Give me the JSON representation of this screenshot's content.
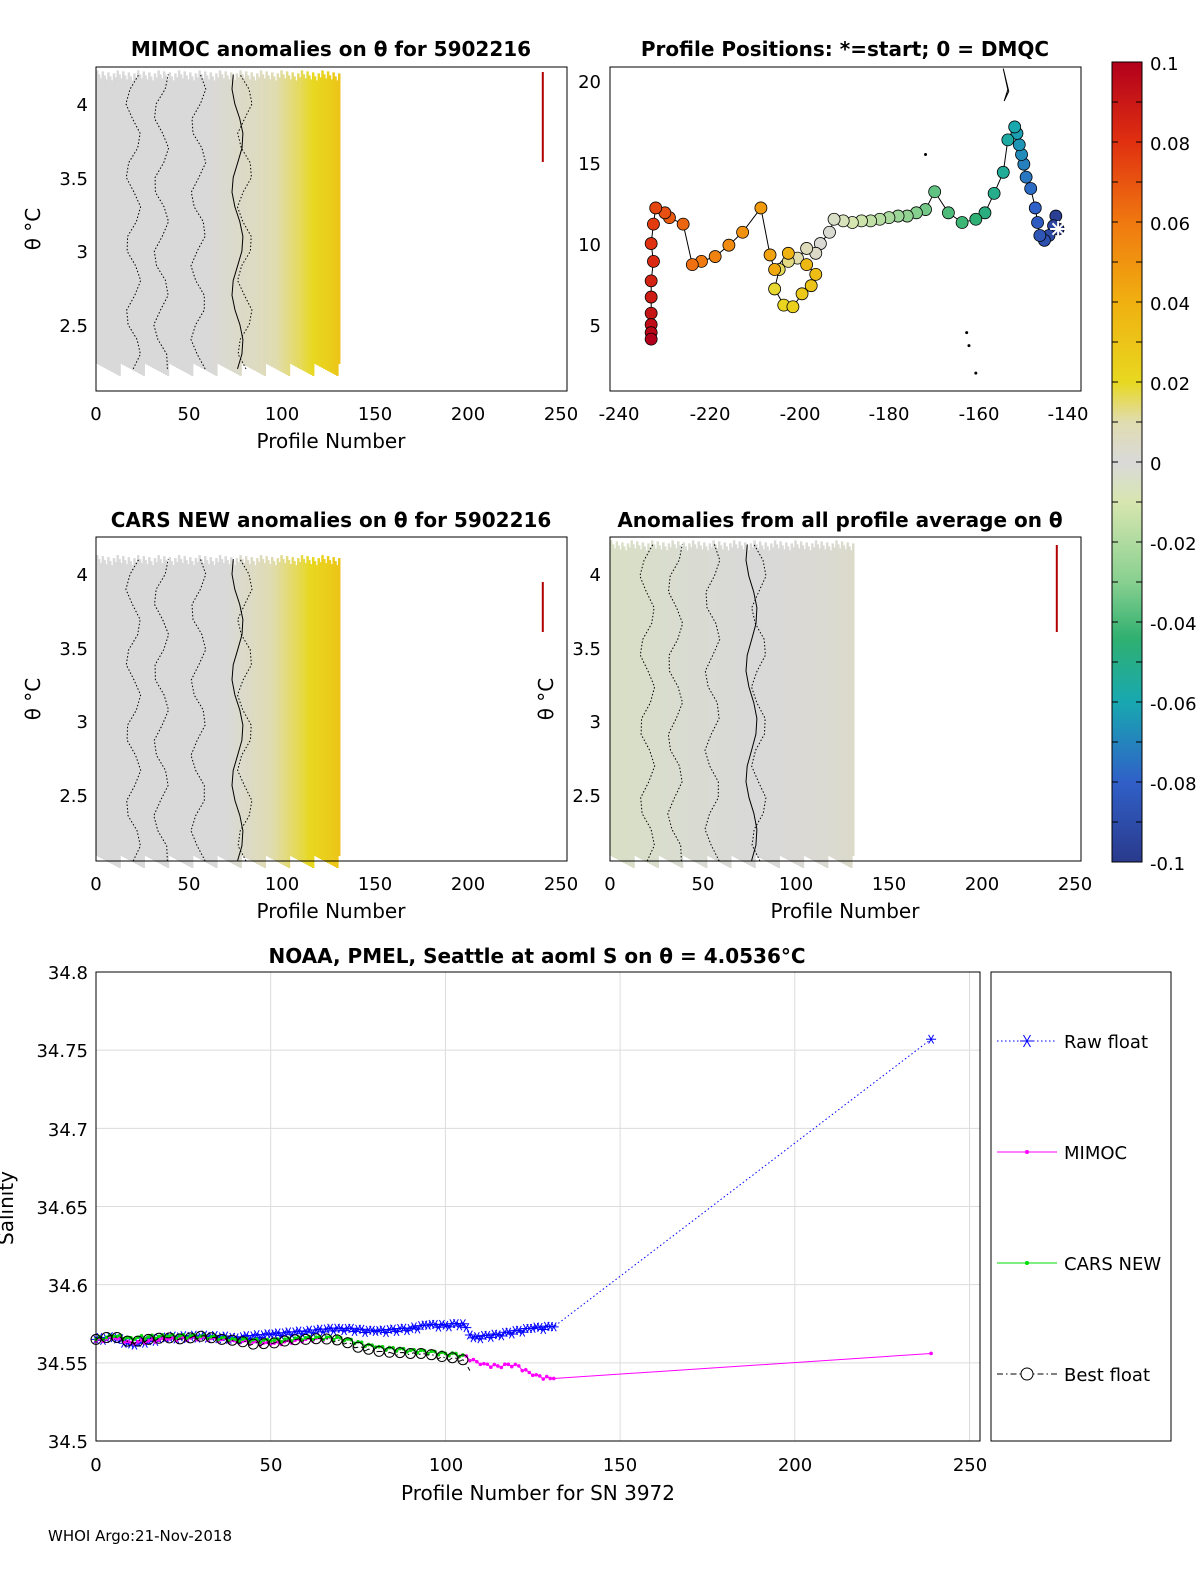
{
  "float_id": "5902216",
  "footer": "WHOI Argo:21-Nov-2018",
  "colorbar": {
    "ticks": [
      "0.1",
      "0.08",
      "0.06",
      "0.04",
      "0.02",
      "0",
      "-0.02",
      "-0.04",
      "-0.06",
      "-0.08",
      "-0.1"
    ],
    "range": [
      -0.1,
      0.1
    ]
  },
  "panels": {
    "mimoc": {
      "title": "MIMOC anomalies on θ  for 5902216",
      "xlabel": "Profile Number",
      "ylabel": "θ °C",
      "xticks": [
        "0",
        "50",
        "100",
        "150",
        "200",
        "250"
      ],
      "yticks": [
        "4",
        "3.5",
        "3",
        "2.5"
      ]
    },
    "positions": {
      "title": "Profile Positions: *=start; 0 = DMQC",
      "xticks": [
        "-240",
        "-220",
        "-200",
        "-180",
        "-160",
        "-140"
      ],
      "yticks": [
        "20",
        "15",
        "10",
        "5"
      ]
    },
    "cars": {
      "title": "CARS NEW anomalies on θ for 5902216",
      "xlabel": "Profile Number",
      "ylabel": "θ °C",
      "xticks": [
        "0",
        "50",
        "100",
        "150",
        "200",
        "250"
      ],
      "yticks": [
        "4",
        "3.5",
        "3",
        "2.5"
      ]
    },
    "allavg": {
      "title": "Anomalies from all profile average on θ",
      "xlabel": "Profile Number",
      "ylabel": "θ °C",
      "xticks": [
        "0",
        "50",
        "100",
        "150",
        "200",
        "250"
      ],
      "yticks": [
        "4",
        "3.5",
        "3",
        "2.5"
      ]
    },
    "salinity": {
      "title": "NOAA, PMEL, Seattle at aoml S on θ = 4.0536°C",
      "xlabel": "Profile Number for SN 3972",
      "ylabel": "Salinity",
      "xticks": [
        "0",
        "50",
        "100",
        "150",
        "200",
        "250"
      ],
      "yticks": [
        "34.8",
        "34.75",
        "34.7",
        "34.65",
        "34.6",
        "34.55",
        "34.5"
      ]
    }
  },
  "chart_data": [
    {
      "type": "heatmap",
      "title": "MIMOC anomalies on θ  for 5902216",
      "xlabel": "Profile Number",
      "ylabel": "θ °C",
      "xlim": [
        0,
        253
      ],
      "ylim": [
        2.05,
        4.25
      ],
      "anomaly_by_profile": [
        [
          0,
          0.0
        ],
        [
          60,
          0.0
        ],
        [
          90,
          0.007
        ],
        [
          110,
          0.016
        ],
        [
          125,
          0.025
        ],
        [
          131,
          0.03
        ]
      ],
      "coverage_profiles": [
        0,
        131
      ],
      "coverage_theta": [
        2.2,
        4.2
      ]
    },
    {
      "type": "scatter",
      "title": "Profile Positions: *=start; 0 = DMQC",
      "xlim": [
        -242,
        -139
      ],
      "ylim": [
        1,
        21
      ],
      "points": [
        [
          -144,
          11
        ],
        [
          -144.5,
          11.8
        ],
        [
          -145,
          11.2
        ],
        [
          -146,
          10.6
        ],
        [
          -147,
          10.3
        ],
        [
          -148,
          10.6
        ],
        [
          -148.5,
          11.4
        ],
        [
          -149,
          12.3
        ],
        [
          -150,
          13.5
        ],
        [
          -151,
          14.2
        ],
        [
          -151.5,
          15
        ],
        [
          -152,
          15.6
        ],
        [
          -152.5,
          16.2
        ],
        [
          -153,
          16.9
        ],
        [
          -153.5,
          17.3
        ],
        [
          -155,
          16.5
        ],
        [
          -156,
          14.5
        ],
        [
          -158,
          13.2
        ],
        [
          -160,
          12.0
        ],
        [
          -162,
          11.6
        ],
        [
          -165,
          11.4
        ],
        [
          -168,
          12.0
        ],
        [
          -171,
          13.3
        ],
        [
          -173,
          12.2
        ],
        [
          -175,
          12.0
        ],
        [
          -177,
          11.8
        ],
        [
          -179,
          11.8
        ],
        [
          -181,
          11.7
        ],
        [
          -183,
          11.6
        ],
        [
          -185,
          11.5
        ],
        [
          -187,
          11.5
        ],
        [
          -189,
          11.4
        ],
        [
          -191,
          11.5
        ],
        [
          -193,
          11.6
        ],
        [
          -194,
          10.8
        ],
        [
          -196,
          10.1
        ],
        [
          -197,
          9.5
        ],
        [
          -199,
          9.8
        ],
        [
          -201,
          9.2
        ],
        [
          -203,
          9.0
        ],
        [
          -205,
          8.5
        ],
        [
          -206,
          7.3
        ],
        [
          -204,
          6.3
        ],
        [
          -202,
          6.2
        ],
        [
          -200,
          7.0
        ],
        [
          -198,
          7.5
        ],
        [
          -197,
          8.2
        ],
        [
          -199,
          8.8
        ],
        [
          -203,
          9.5
        ],
        [
          -206,
          8.5
        ],
        [
          -207,
          9.4
        ],
        [
          -209,
          12.3
        ],
        [
          -213,
          10.8
        ],
        [
          -216,
          10.0
        ],
        [
          -219,
          9.3
        ],
        [
          -222,
          9.0
        ],
        [
          -224,
          8.8
        ],
        [
          -226,
          11.3
        ],
        [
          -229,
          11.7
        ],
        [
          -230,
          12.0
        ],
        [
          -232,
          12.3
        ],
        [
          -232.5,
          11.3
        ],
        [
          -233,
          10.1
        ],
        [
          -232.5,
          9.0
        ],
        [
          -233,
          7.8
        ],
        [
          -233,
          6.8
        ],
        [
          -233,
          5.8
        ],
        [
          -233,
          5.1
        ],
        [
          -233,
          4.6
        ],
        [
          -233,
          4.2
        ]
      ],
      "start_marker": [
        -144,
        11
      ]
    },
    {
      "type": "heatmap",
      "title": "CARS NEW anomalies on θ for 5902216",
      "xlabel": "Profile Number",
      "ylabel": "θ °C",
      "xlim": [
        0,
        253
      ],
      "ylim": [
        2.05,
        4.25
      ],
      "anomaly_by_profile": [
        [
          0,
          0.0
        ],
        [
          70,
          0.0
        ],
        [
          90,
          0.008
        ],
        [
          110,
          0.017
        ],
        [
          125,
          0.026
        ],
        [
          131,
          0.03
        ]
      ],
      "coverage_profiles": [
        0,
        131
      ],
      "coverage_theta": [
        2.05,
        4.1
      ]
    },
    {
      "type": "heatmap",
      "title": "Anomalies from all profile average on θ",
      "xlabel": "Profile Number",
      "ylabel": "θ °C",
      "xlim": [
        0,
        253
      ],
      "ylim": [
        2.05,
        4.25
      ],
      "anomaly_by_profile": [
        [
          0,
          -0.005
        ],
        [
          40,
          -0.002
        ],
        [
          80,
          0.0
        ],
        [
          120,
          0.002
        ],
        [
          131,
          0.004
        ]
      ],
      "coverage_profiles": [
        0,
        131
      ],
      "coverage_theta": [
        2.05,
        4.2
      ]
    },
    {
      "type": "line",
      "title": "NOAA, PMEL, Seattle at aoml S on θ = 4.0536°C",
      "xlabel": "Profile Number for SN 3972",
      "ylabel": "Salinity",
      "xlim": [
        0,
        253
      ],
      "ylim": [
        34.5,
        34.8
      ],
      "legend_position": "right",
      "series": [
        {
          "name": "Raw float",
          "color": "#0000ff",
          "marker": "*",
          "x": [
            0,
            5,
            10,
            20,
            30,
            40,
            50,
            60,
            70,
            80,
            90,
            95,
            100,
            105,
            108,
            115,
            125,
            131,
            239
          ],
          "y": [
            34.565,
            34.566,
            34.562,
            34.566,
            34.567,
            34.566,
            34.568,
            34.57,
            34.572,
            34.57,
            34.572,
            34.574,
            34.574,
            34.575,
            34.566,
            34.568,
            34.572,
            34.573,
            34.757
          ]
        },
        {
          "name": "MIMOC",
          "color": "#ff00ff",
          "marker": ".",
          "x": [
            0,
            5,
            10,
            20,
            30,
            40,
            50,
            60,
            70,
            80,
            90,
            100,
            105,
            110,
            115,
            120,
            125,
            130,
            131,
            239
          ],
          "y": [
            34.564,
            34.566,
            34.563,
            34.565,
            34.566,
            34.564,
            34.562,
            34.565,
            34.566,
            34.56,
            34.558,
            34.556,
            34.555,
            34.549,
            34.548,
            34.549,
            34.542,
            34.54,
            34.54,
            34.556
          ]
        },
        {
          "name": "CARS NEW",
          "color": "#00dd00",
          "marker": ".",
          "x": [
            0,
            5,
            10,
            20,
            30,
            40,
            50,
            60,
            70,
            80,
            90,
            100,
            105
          ],
          "y": [
            34.565,
            34.567,
            34.566,
            34.567,
            34.567,
            34.565,
            34.564,
            34.566,
            34.566,
            34.56,
            34.558,
            34.556,
            34.555
          ]
        },
        {
          "name": "Best float",
          "color": "#000000",
          "marker": "o",
          "x": [
            0,
            5,
            10,
            15,
            20,
            25,
            30,
            35,
            40,
            45,
            50,
            55,
            60,
            65,
            70,
            75,
            80,
            85,
            90,
            95,
            100,
            105,
            107
          ],
          "y": [
            34.565,
            34.567,
            34.563,
            34.565,
            34.566,
            34.565,
            34.567,
            34.565,
            34.564,
            34.562,
            34.562,
            34.564,
            34.565,
            34.565,
            34.564,
            34.56,
            34.557,
            34.556,
            34.556,
            34.555,
            34.553,
            34.552,
            34.545
          ]
        }
      ]
    }
  ]
}
